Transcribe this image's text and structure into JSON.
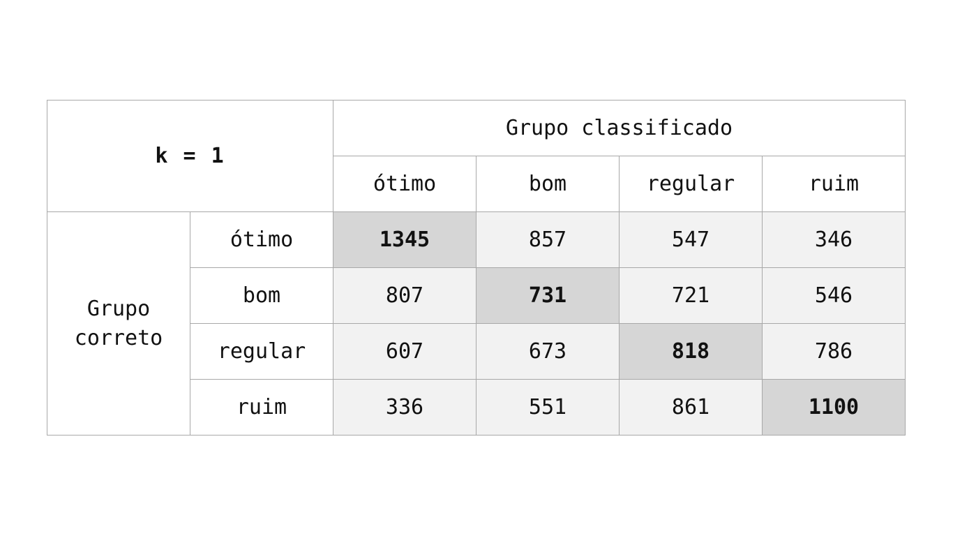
{
  "corner_label": "k = 1",
  "column_group_label": "Grupo classificado",
  "row_group_label_line1": "Grupo",
  "row_group_label_line2": "correto",
  "classes": [
    "ótimo",
    "bom",
    "regular",
    "ruim"
  ],
  "matrix": [
    [
      "1345",
      "857",
      "547",
      "346"
    ],
    [
      "807",
      "731",
      "721",
      "546"
    ],
    [
      "607",
      "673",
      "818",
      "786"
    ],
    [
      "336",
      "551",
      "861",
      "1100"
    ]
  ]
}
